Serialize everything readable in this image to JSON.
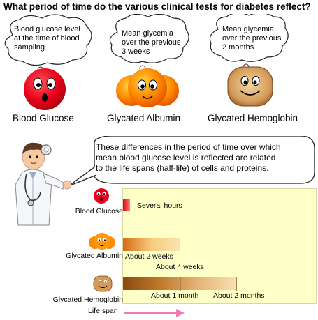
{
  "title": "What period of time do the various clinical tests for diabetes reflect?",
  "bubbles": {
    "glucose": [
      "Blood glucose level",
      "at the time of blood",
      "sampling"
    ],
    "albumin": [
      "Mean glycemia",
      "over the previous",
      "3 weeks"
    ],
    "hemoglobin": [
      "Mean glycemia",
      "over the previous",
      "2 months"
    ]
  },
  "characters": {
    "glucose": "Blood Glucose",
    "albumin": "Glycated Albumin",
    "hemoglobin": "Glycated Hemoglobin"
  },
  "doctor_speech": [
    "These differences in the period of time over which",
    "mean blood glucose level is reflected are related",
    "to the life spans (half-life) of cells and proteins."
  ],
  "timeline": {
    "rows": [
      {
        "label": "Blood Glucose",
        "annotations": [
          "Several hours"
        ]
      },
      {
        "label": "Glycated Albumin",
        "annotations": [
          "About 2 weeks",
          "About 4 weeks"
        ]
      },
      {
        "label": "Glycated Hemoglobin",
        "annotations": [
          "About 1 month",
          "About 2 months"
        ]
      }
    ],
    "axis_label": "Life span"
  },
  "colors": {
    "glucose": "#e8001c",
    "albumin": "#ff7a00",
    "hemoglobin": "#a0622a",
    "chart_background": "#ffffc8",
    "arrow": "#f07ab4"
  }
}
